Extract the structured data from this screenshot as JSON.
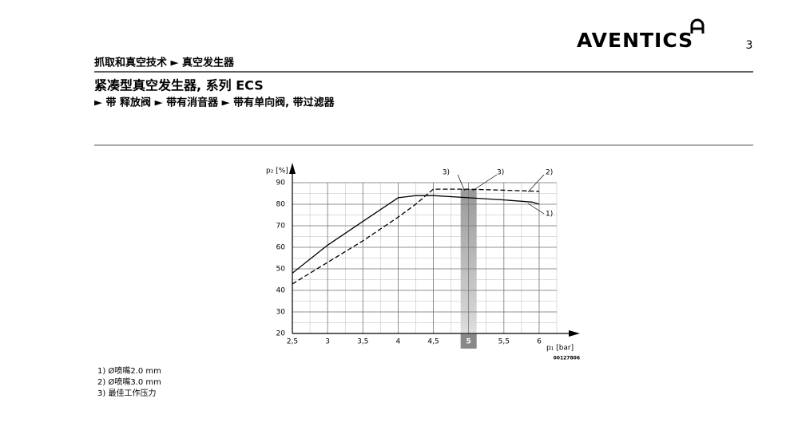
{
  "header": {
    "logo": "AVENTICS",
    "page_number": "3",
    "breadcrumb": "抓取和真空技术 ► 真空发生器",
    "title": "紧凑型真空发生器, 系列 ECS",
    "subtitle": "► 带 释放阀 ► 带有消音器 ► 带有单向阀, 带过滤器"
  },
  "chart_data": {
    "type": "line",
    "y_label": "p₂ [%]",
    "x_label": "p₁ [bar]",
    "code": "00127806",
    "xlim": [
      2.5,
      6.25
    ],
    "ylim": [
      20,
      90
    ],
    "xticks": [
      {
        "value": 2.5,
        "label": "2,5"
      },
      3,
      {
        "value": 3.5,
        "label": "3,5"
      },
      4,
      {
        "value": 4.5,
        "label": "4,5"
      },
      5,
      {
        "value": 5.5,
        "label": "5,5"
      },
      6
    ],
    "yticks": [
      20,
      30,
      40,
      50,
      60,
      70,
      80,
      90
    ],
    "grid": true,
    "series": [
      {
        "name": "1)",
        "color": "#000000",
        "dash": false,
        "x": [
          2.5,
          3,
          3.5,
          4,
          4.25,
          4.5,
          5,
          5.5,
          5.9,
          6
        ],
        "values": [
          48,
          61,
          72,
          83,
          84,
          84,
          83,
          82,
          81,
          80
        ]
      },
      {
        "name": "2)",
        "color": "#000000",
        "dash": true,
        "x": [
          2.5,
          3,
          3.5,
          4,
          4.25,
          4.5,
          5,
          5.5,
          6
        ],
        "values": [
          43,
          53,
          63,
          74,
          80,
          87,
          87,
          86.5,
          86
        ]
      }
    ],
    "optimum": {
      "x": 5,
      "labels": [
        "3)",
        "3)"
      ]
    }
  },
  "notes": [
    "1) Ø喷嘴2.0 mm",
    "2) Ø喷嘴3.0 mm",
    "3) 最佳工作压力"
  ]
}
